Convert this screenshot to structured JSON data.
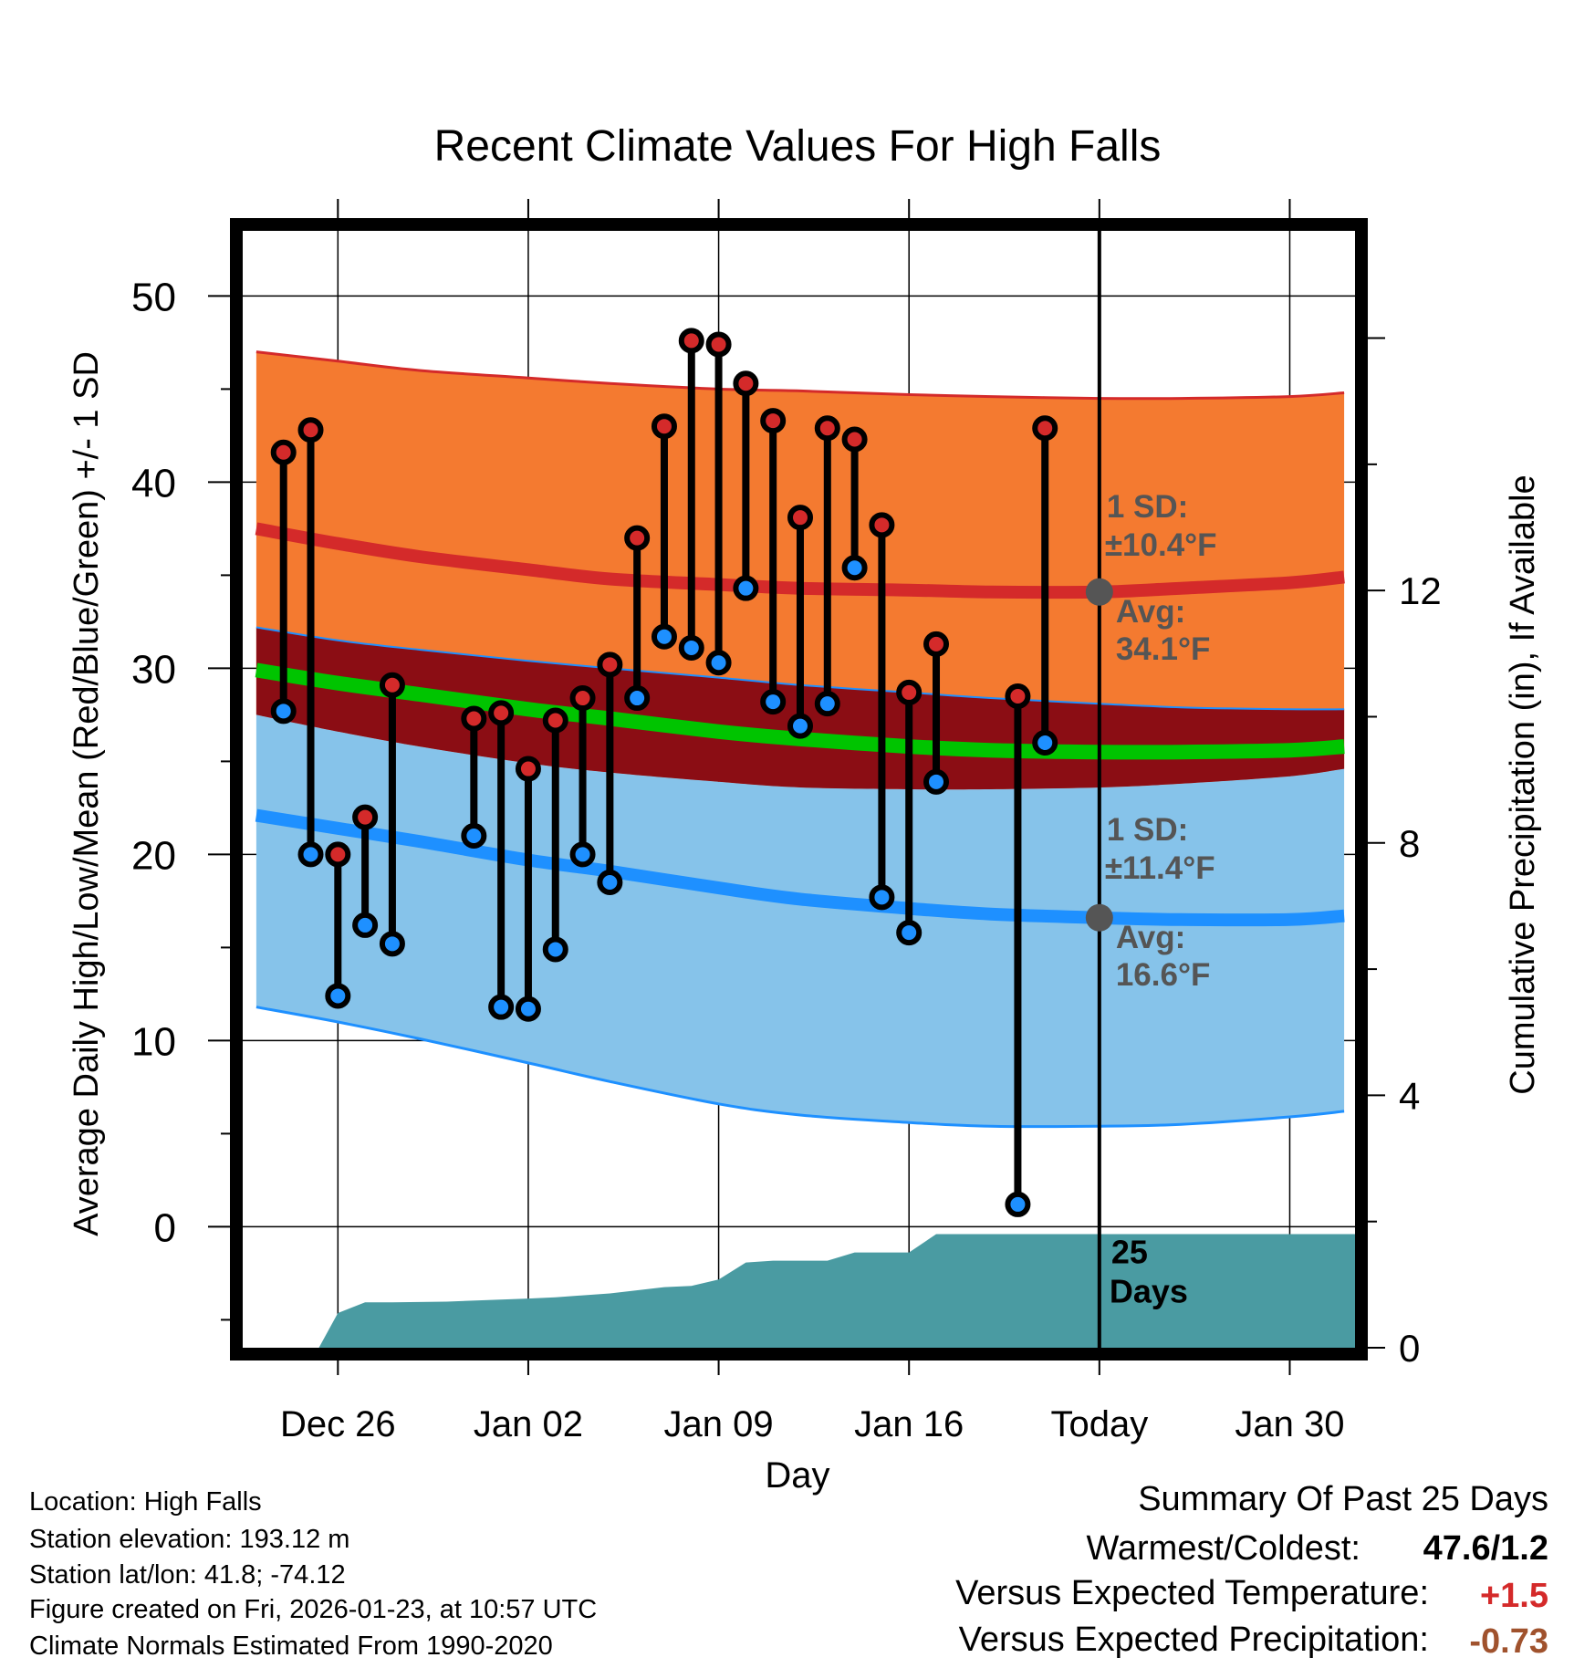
{
  "chart_data": {
    "type": "line",
    "title": "Recent Climate Values For High Falls",
    "xlabel": "Day",
    "ylabel": "Average Daily High/Low/Mean (Red/Blue/Green) +/- 1 SD",
    "y2label": "Cumulative Precipitation (in), If Available",
    "ylim": [
      -6.5,
      53.5
    ],
    "y2lim": [
      0,
      17.7
    ],
    "xlim": [
      -3.5,
      37.4
    ],
    "yticks": [
      0,
      10,
      20,
      30,
      40,
      50
    ],
    "y2ticks": [
      0,
      4,
      8,
      12
    ],
    "x_ticks": [
      {
        "day": 0,
        "label": "Dec 26"
      },
      {
        "day": 7,
        "label": "Jan 02"
      },
      {
        "day": 14,
        "label": "Jan 09"
      },
      {
        "day": 21,
        "label": "Jan 16"
      },
      {
        "day": 28,
        "label": "Today"
      },
      {
        "day": 35,
        "label": "Jan 30"
      }
    ],
    "today_day": 28,
    "normals": {
      "days": [
        -3,
        0,
        3,
        7,
        10,
        14,
        17,
        21,
        24,
        28,
        31,
        35,
        37
      ],
      "high_avg": [
        37.5,
        36.7,
        36.0,
        35.3,
        34.8,
        34.5,
        34.3,
        34.2,
        34.1,
        34.1,
        34.3,
        34.6,
        34.9
      ],
      "high_plus_sd": [
        47.0,
        46.5,
        46.0,
        45.6,
        45.3,
        45.0,
        44.9,
        44.7,
        44.6,
        44.5,
        44.5,
        44.6,
        44.8
      ],
      "high_minus_sd": [
        32.2,
        31.5,
        31.0,
        30.4,
        30.0,
        29.5,
        29.1,
        28.7,
        28.4,
        28.1,
        27.9,
        27.8,
        27.8
      ],
      "mean_avg": [
        29.9,
        29.2,
        28.6,
        27.8,
        27.3,
        26.6,
        26.2,
        25.8,
        25.6,
        25.5,
        25.5,
        25.6,
        25.8
      ],
      "low_avg": [
        22.1,
        21.4,
        20.7,
        19.7,
        19.1,
        18.2,
        17.6,
        17.1,
        16.8,
        16.6,
        16.5,
        16.5,
        16.7
      ],
      "low_plus_sd": [
        27.5,
        26.6,
        25.8,
        24.9,
        24.4,
        23.9,
        23.6,
        23.5,
        23.5,
        23.6,
        23.8,
        24.2,
        24.6
      ],
      "low_minus_sd": [
        11.8,
        11.0,
        10.1,
        8.8,
        7.8,
        6.6,
        6.0,
        5.6,
        5.4,
        5.4,
        5.5,
        5.9,
        6.2
      ]
    },
    "series": [
      {
        "name": "High",
        "color": "#d42a2a",
        "values": [
          41.6,
          42.8,
          20.0,
          22.0,
          29.1,
          null,
          null,
          27.3,
          27.6,
          24.6,
          27.2,
          28.4,
          30.2,
          37.0,
          43.0,
          47.6,
          47.4,
          45.3,
          43.3,
          38.1,
          42.9,
          42.3,
          37.7,
          28.7,
          31.3,
          null,
          null,
          28.5,
          42.9
        ]
      },
      {
        "name": "Low",
        "color": "#1e90ff",
        "values": [
          27.7,
          20.0,
          12.4,
          16.2,
          15.2,
          null,
          null,
          21.0,
          11.8,
          11.7,
          14.9,
          20.0,
          18.5,
          28.4,
          31.7,
          31.1,
          30.3,
          34.3,
          28.2,
          26.9,
          28.1,
          35.4,
          17.7,
          15.8,
          23.9,
          null,
          null,
          1.2,
          26.0
        ]
      }
    ],
    "obs_days": [
      -2,
      -1,
      0,
      1,
      2,
      3,
      4,
      5,
      6,
      7,
      8,
      9,
      10,
      11,
      12,
      13,
      14,
      15,
      16,
      17,
      18,
      19,
      20,
      21,
      22,
      23,
      24,
      25,
      26
    ],
    "precip": {
      "days": [
        -3,
        -0.7,
        0,
        1,
        2,
        4,
        7,
        8,
        10,
        12,
        13,
        14,
        15,
        16,
        17,
        18,
        19,
        20,
        21,
        22,
        28,
        37.4
      ],
      "values": [
        0,
        0,
        0.55,
        0.72,
        0.72,
        0.73,
        0.78,
        0.8,
        0.86,
        0.96,
        0.98,
        1.08,
        1.35,
        1.38,
        1.38,
        1.38,
        1.51,
        1.51,
        1.51,
        1.8,
        1.8,
        1.8
      ]
    },
    "annotations": {
      "high_sd_label": "1 SD:",
      "high_sd_value": "±10.4°F",
      "high_avg_label": "Avg:",
      "high_avg_value": "34.1°F",
      "high_avg_today": 34.1,
      "low_sd_label": "1 SD:",
      "low_sd_value": "±11.4°F",
      "low_avg_label": "Avg:",
      "low_avg_value": "16.6°F",
      "low_avg_today": 16.6,
      "days_count": "25",
      "days_word": "Days"
    },
    "colors": {
      "high_band": "#f47a30",
      "high_band_edge": "#d42a2a",
      "high_avg_line": "#d42a2a",
      "overlap_band": "#8b0d14",
      "low_band": "#86c3ea",
      "low_band_edge": "#1e90ff",
      "low_avg_line": "#1e90ff",
      "mean_line": "#00c400",
      "precip_fill": "#4a9ba2",
      "annotation_text": "#555555"
    }
  },
  "info": {
    "location": "Location: High Falls",
    "elevation": "Station elevation: 193.12 m",
    "latlon": "Station lat/lon: 41.8; -74.12",
    "created": "Figure created on Fri, 2026-01-23, at 10:57 UTC",
    "normals": "Climate Normals Estimated From 1990-2020"
  },
  "summary": {
    "title": "Summary Of Past 25 Days",
    "warm_cold_label": "Warmest/Coldest:",
    "warm_cold_value": "47.6/1.2",
    "temp_label": "Versus Expected Temperature:",
    "temp_value": "+1.5",
    "temp_color": "#d42a2a",
    "precip_label": "Versus Expected Precipitation:",
    "precip_value": "-0.73",
    "precip_color": "#a0522d"
  }
}
